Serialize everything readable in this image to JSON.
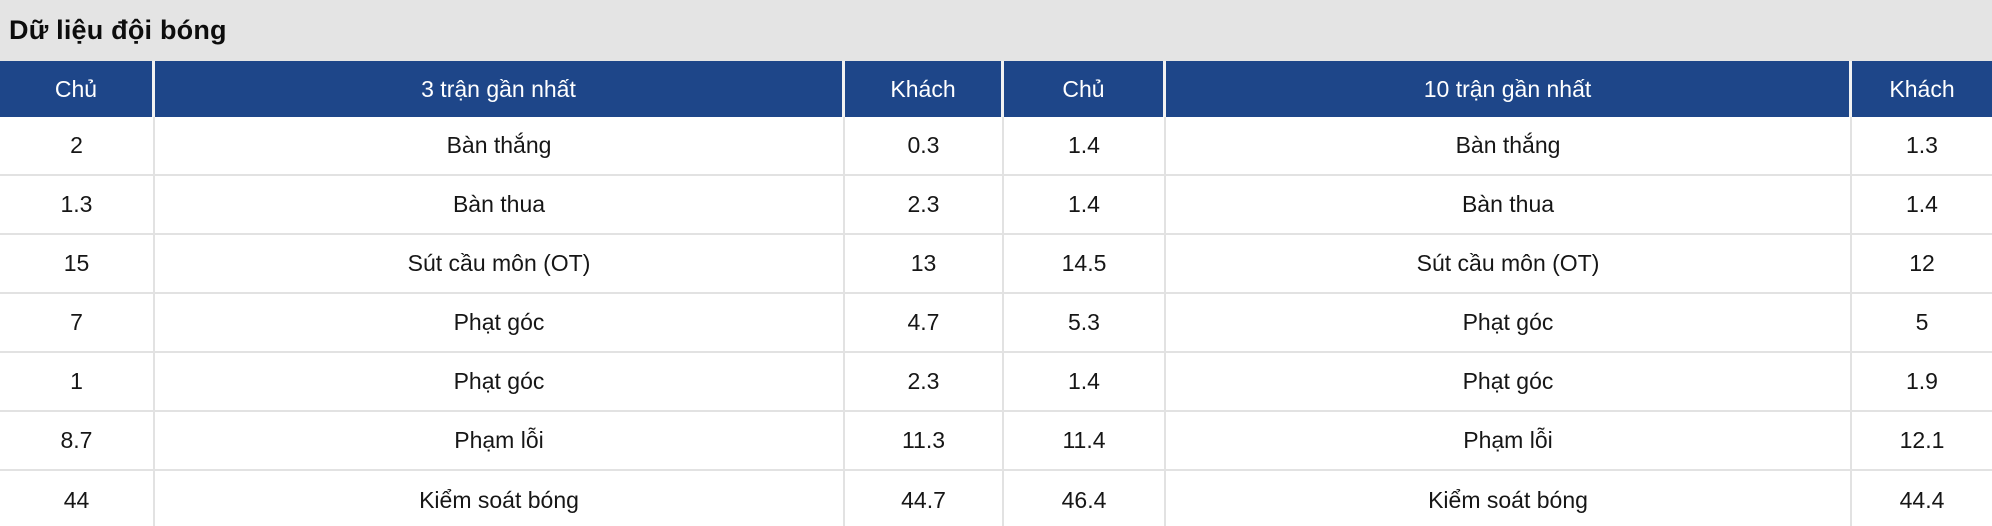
{
  "title": "Dữ liệu đội bóng",
  "colors": {
    "header_bg": "#1e4689",
    "header_text": "#ffffff",
    "header_border": "#f2f2f2",
    "title_bg": "#e4e4e4",
    "title_text": "#0d0d0d",
    "body_bg": "#ffffff",
    "body_text": "#161616",
    "border": "#e2e2e2"
  },
  "table": {
    "columns": [
      "Chủ",
      "3 trận gần nhất",
      "Khách",
      "Chủ",
      "10 trận gần nhất",
      "Khách"
    ],
    "rows": [
      [
        "2",
        "Bàn thắng",
        "0.3",
        "1.4",
        "Bàn thắng",
        "1.3"
      ],
      [
        "1.3",
        "Bàn thua",
        "2.3",
        "1.4",
        "Bàn thua",
        "1.4"
      ],
      [
        "15",
        "Sút cầu môn (OT)",
        "13",
        "14.5",
        "Sút cầu môn (OT)",
        "12"
      ],
      [
        "7",
        "Phạt góc",
        "4.7",
        "5.3",
        "Phạt góc",
        "5"
      ],
      [
        "1",
        "Phạt góc",
        "2.3",
        "1.4",
        "Phạt góc",
        "1.9"
      ],
      [
        "8.7",
        "Phạm lỗi",
        "11.3",
        "11.4",
        "Phạm lỗi",
        "12.1"
      ],
      [
        "44",
        "Kiểm soát bóng",
        "44.7",
        "46.4",
        "Kiểm soát bóng",
        "44.4"
      ]
    ]
  }
}
